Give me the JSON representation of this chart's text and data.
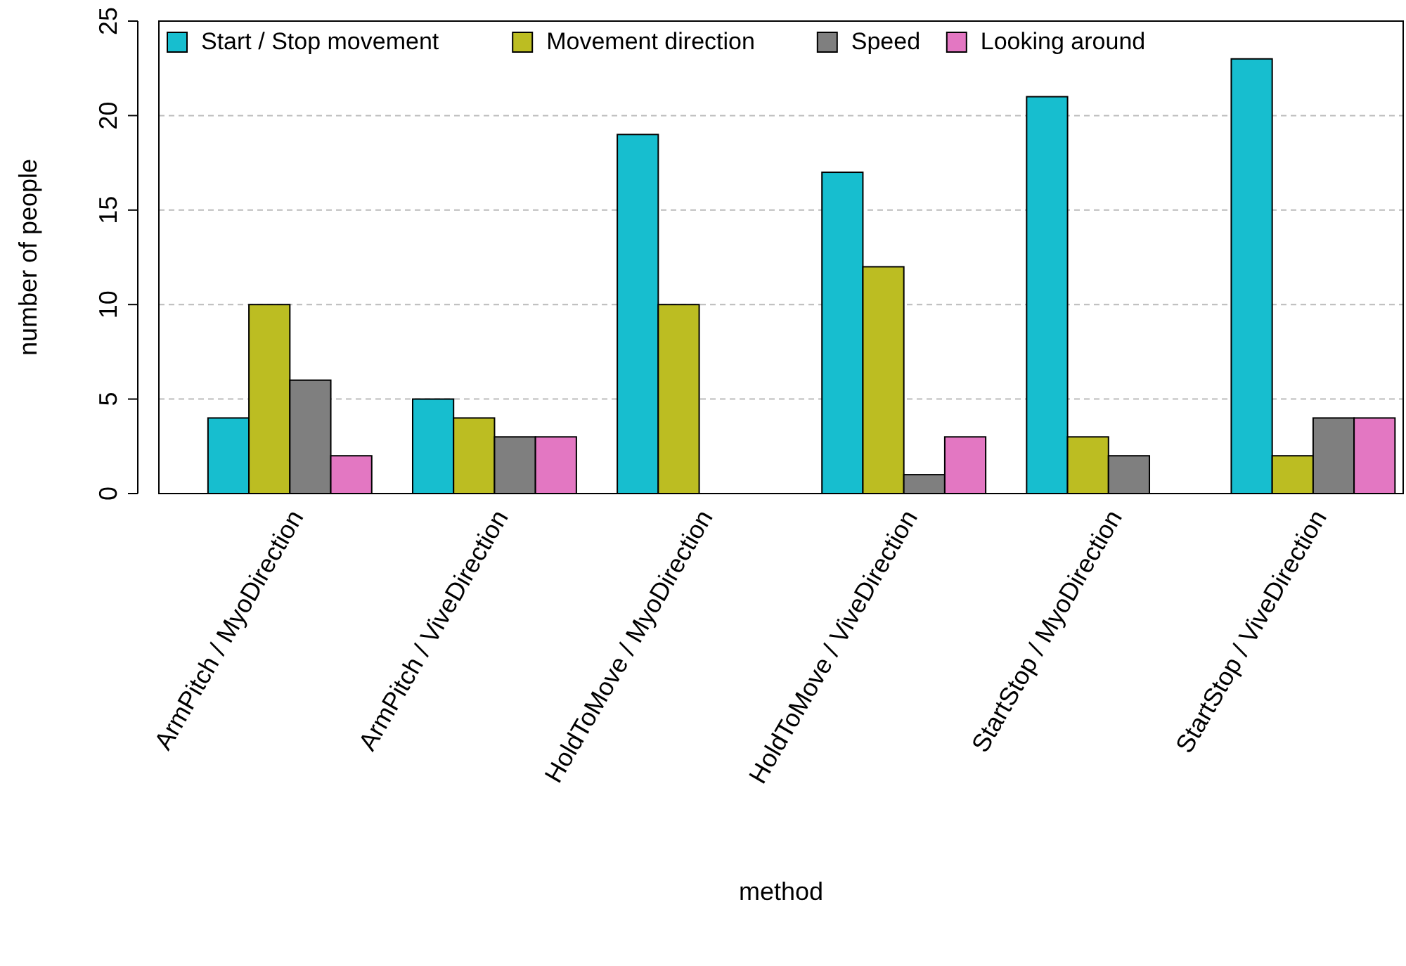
{
  "chart_data": {
    "type": "bar",
    "xlabel": "method",
    "ylabel": "number of people",
    "categories": [
      "ArmPitch / MyoDirection",
      "ArmPitch / ViveDirection",
      "HoldToMove / MyoDirection",
      "HoldToMove / ViveDirection",
      "StartStop / MyoDirection",
      "StartStop / ViveDirection"
    ],
    "series": [
      {
        "name": "Start / Stop movement",
        "color": "#17becf",
        "values": [
          4,
          5,
          19,
          17,
          21,
          23
        ]
      },
      {
        "name": "Movement direction",
        "color": "#bcbd22",
        "values": [
          10,
          4,
          10,
          12,
          3,
          2
        ]
      },
      {
        "name": "Speed",
        "color": "#7f7f7f",
        "values": [
          6,
          3,
          0,
          1,
          2,
          4
        ]
      },
      {
        "name": "Looking around",
        "color": "#e377c2",
        "values": [
          2,
          3,
          0,
          3,
          0,
          4
        ]
      }
    ],
    "ylim": [
      0,
      25
    ],
    "yticks": [
      0,
      5,
      10,
      15,
      20,
      25
    ],
    "grid": "y",
    "legend": "top"
  }
}
